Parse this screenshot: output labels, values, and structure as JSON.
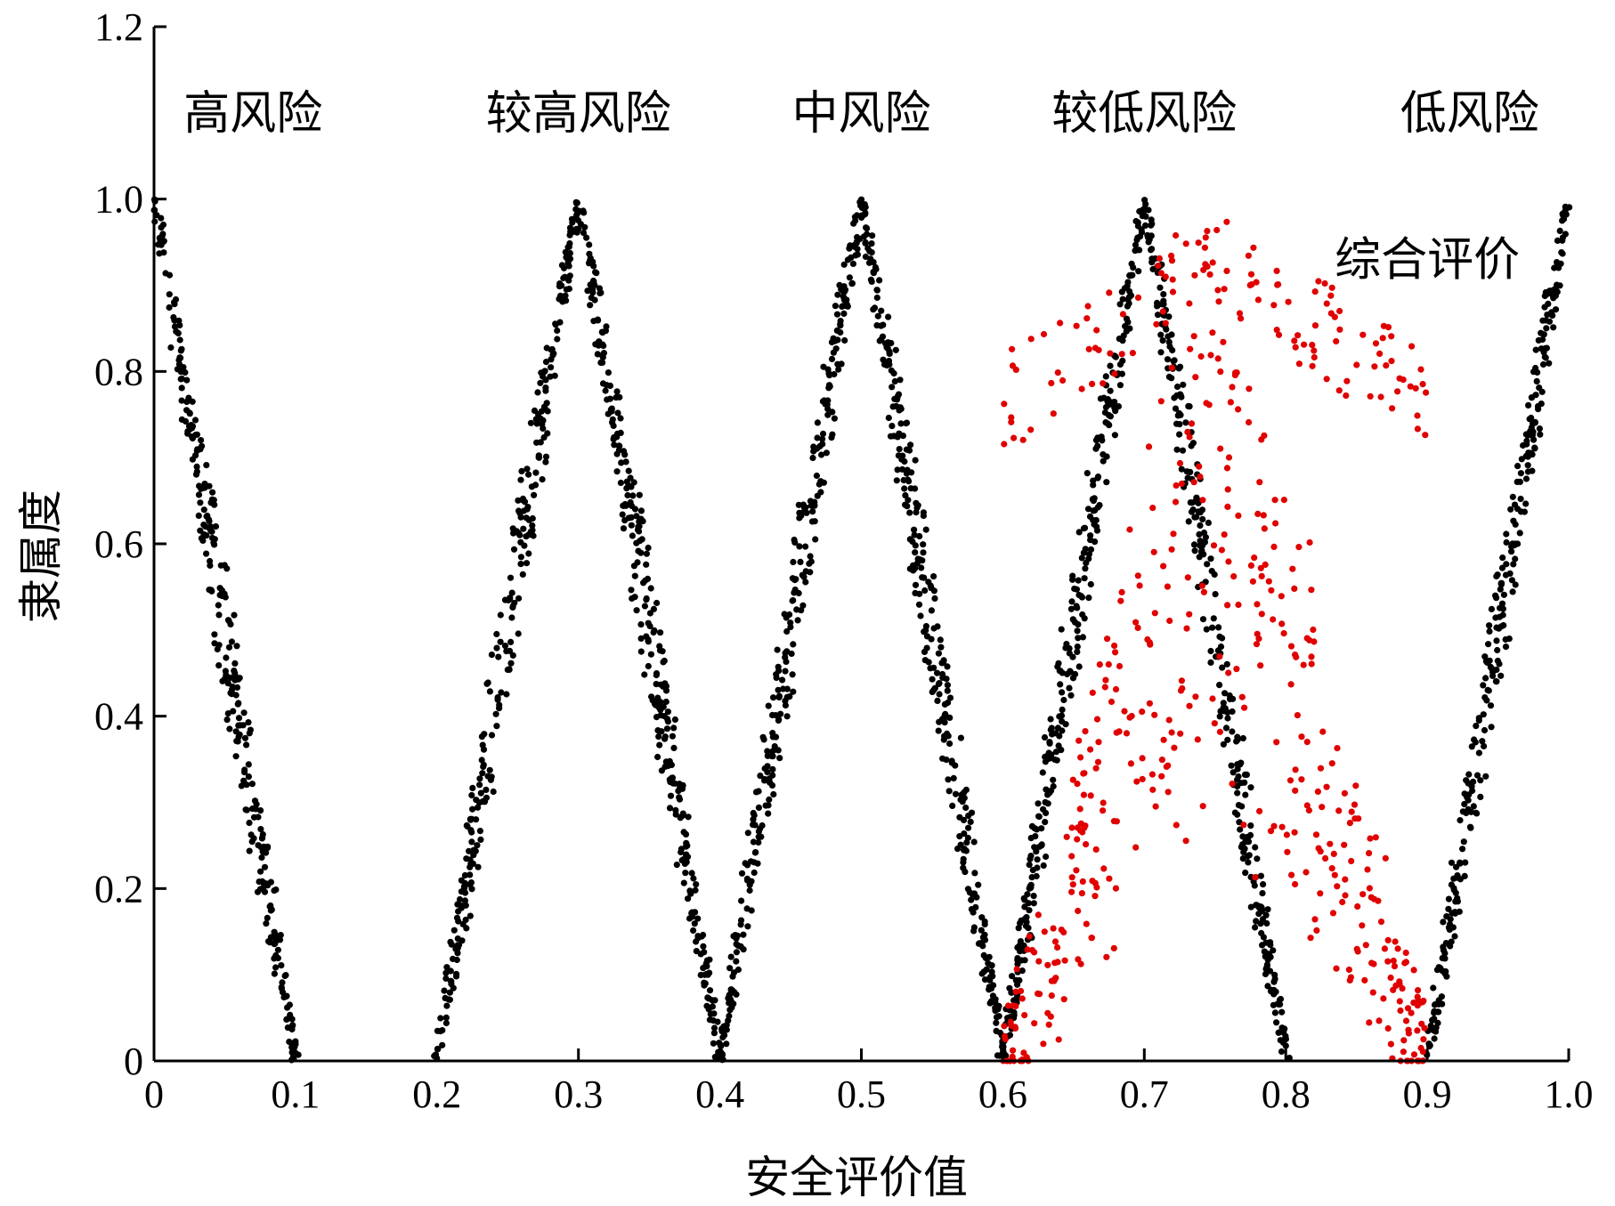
{
  "chart_data": {
    "type": "scatter",
    "xlabel": "安全评价值",
    "ylabel": "隶属度",
    "xlim": [
      0,
      1.0
    ],
    "ylim": [
      0,
      1.2
    ],
    "x_ticks": [
      "0",
      "0.1",
      "0.2",
      "0.3",
      "0.4",
      "0.5",
      "0.6",
      "0.7",
      "0.8",
      "0.9",
      "1.0"
    ],
    "y_ticks": [
      "0",
      "0.2",
      "0.4",
      "0.6",
      "0.8",
      "1.0",
      "1.2"
    ],
    "grid": false,
    "annotations": [
      {
        "text": "高风险",
        "x": 0.07,
        "y": 1.1
      },
      {
        "text": "较高风险",
        "x": 0.3,
        "y": 1.1
      },
      {
        "text": "中风险",
        "x": 0.5,
        "y": 1.1
      },
      {
        "text": "较低风险",
        "x": 0.7,
        "y": 1.1
      },
      {
        "text": "低风险",
        "x": 0.93,
        "y": 1.1
      },
      {
        "text": "综合评价",
        "x": 0.9,
        "y": 0.93
      }
    ],
    "series": [
      {
        "label": "高风险",
        "color": "#000000",
        "peak": 0.0,
        "spread": 0.1,
        "points": 300
      },
      {
        "label": "较高风险",
        "color": "#000000",
        "peak": 0.3,
        "spread": 0.1,
        "points": 600
      },
      {
        "label": "中风险",
        "color": "#000000",
        "peak": 0.5,
        "spread": 0.1,
        "points": 600
      },
      {
        "label": "较低风险",
        "color": "#000000",
        "peak": 0.7,
        "spread": 0.1,
        "points": 600
      },
      {
        "label": "低风险",
        "color": "#000000",
        "peak": 1.0,
        "spread": 0.1,
        "points": 300
      },
      {
        "label": "综合评价",
        "color": "#e00000",
        "peak": 0.75,
        "spread": 0.15,
        "points": 550
      }
    ]
  }
}
